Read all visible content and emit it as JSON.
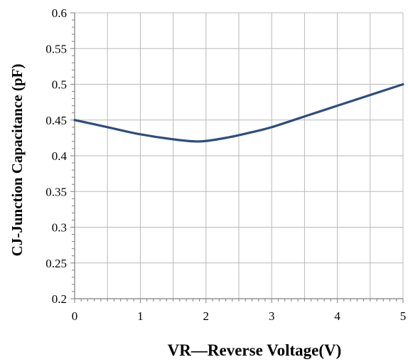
{
  "chart_data": {
    "type": "line",
    "title": "",
    "xlabel": "VR—Reverse Voltage(V)",
    "ylabel": "CJ-Junction Capacitance (pF)",
    "xlim": [
      0,
      5
    ],
    "ylim": [
      0.2,
      0.6
    ],
    "x_ticks": [
      "0",
      "1",
      "2",
      "3",
      "4",
      "5"
    ],
    "y_ticks": [
      "0.2",
      "0.25",
      "0.3",
      "0.35",
      "0.4",
      "0.45",
      "0.5",
      "0.55",
      "0.6"
    ],
    "grid": true,
    "series": [
      {
        "color": "#2e4d7f",
        "x": [
          0,
          0.5,
          1,
          1.5,
          1.9,
          2.3,
          2.7,
          3,
          3.5,
          4,
          4.5,
          5
        ],
        "y": [
          0.45,
          0.44,
          0.43,
          0.423,
          0.42,
          0.425,
          0.433,
          0.44,
          0.455,
          0.47,
          0.485,
          0.5
        ]
      }
    ]
  }
}
